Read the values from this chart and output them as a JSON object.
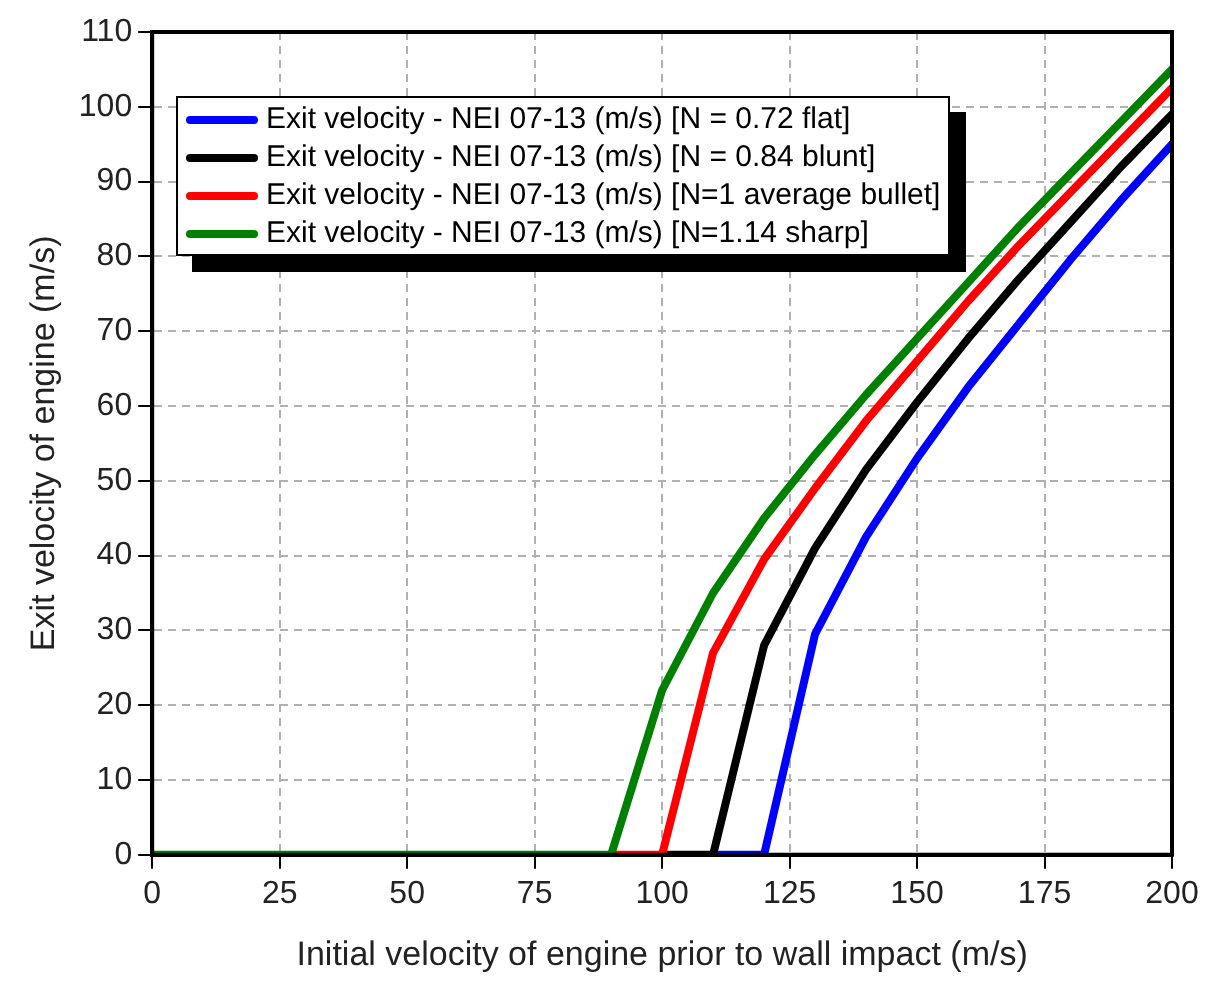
{
  "chart_data": {
    "type": "line",
    "xlabel": "Initial velocity of engine prior to wall impact (m/s)",
    "ylabel": "Exit velocity of engine (m/s)",
    "x": [
      0,
      10,
      20,
      30,
      40,
      50,
      60,
      70,
      80,
      90,
      100,
      110,
      120,
      130,
      140,
      150,
      160,
      170,
      180,
      190,
      200
    ],
    "series": [
      {
        "name": "Exit velocity - NEI 07-13 (m/s) [N = 0.72 flat]",
        "color": "#0000ff",
        "values": [
          null,
          null,
          null,
          null,
          null,
          null,
          null,
          null,
          null,
          null,
          null,
          0,
          0,
          29.5,
          42.5,
          53,
          62.5,
          71,
          79.5,
          87.5,
          95
        ]
      },
      {
        "name": "Exit velocity - NEI 07-13 (m/s) [N = 0.84 blunt]",
        "color": "#000000",
        "values": [
          null,
          null,
          null,
          null,
          null,
          null,
          null,
          null,
          null,
          null,
          0,
          0,
          28,
          41,
          51.5,
          60.5,
          69,
          77,
          84.5,
          92,
          99
        ]
      },
      {
        "name": "Exit velocity - NEI 07-13 (m/s) [N=1 average bullet]",
        "color": "#ff0000",
        "values": [
          null,
          null,
          null,
          null,
          null,
          null,
          null,
          null,
          null,
          0,
          0,
          27,
          39.5,
          49,
          58,
          66,
          74,
          81.5,
          88.5,
          95.5,
          102.5
        ]
      },
      {
        "name": "Exit velocity - NEI 07-13 (m/s) [N=1.14  sharp]",
        "color": "#008000",
        "values": [
          0,
          0,
          0,
          0,
          0,
          0,
          0,
          0,
          0,
          0,
          22,
          35,
          45,
          53.5,
          61.5,
          69,
          76.5,
          84,
          91,
          98,
          105
        ]
      }
    ],
    "xlim": [
      0,
      200
    ],
    "xticks": [
      0,
      25,
      50,
      75,
      100,
      125,
      150,
      175,
      200
    ],
    "ylim": [
      0,
      110
    ],
    "yticks": [
      0,
      10,
      20,
      30,
      40,
      50,
      60,
      70,
      80,
      90,
      100,
      110
    ],
    "grid": true,
    "legend": "top left",
    "marker": "none",
    "line_style": "solid"
  }
}
